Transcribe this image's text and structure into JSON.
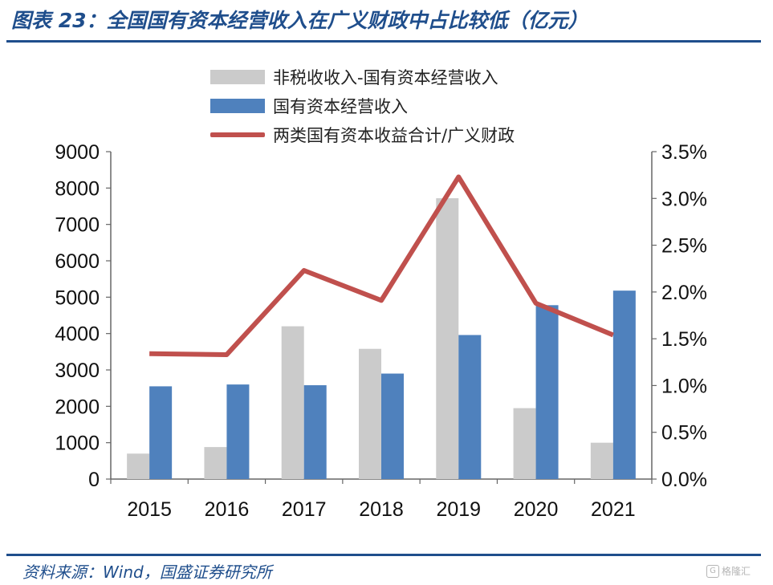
{
  "title": "图表 23：全国国有资本经营收入在广义财政中占比较低（亿元）",
  "source": "资料来源：Wind，国盛证券研究所",
  "watermark": "格隆汇",
  "watermark_icon": "G",
  "colors": {
    "series_nontax": "#cbcbcb",
    "series_soe": "#4f81bd",
    "series_ratio": "#c0504d",
    "accent": "#1f4e8c"
  },
  "chart_data": {
    "type": "bar",
    "categories": [
      "2015",
      "2016",
      "2017",
      "2018",
      "2019",
      "2020",
      "2021"
    ],
    "series": [
      {
        "name": "非税收收入-国有资本经营收入",
        "type": "bar",
        "axis": "left",
        "values": [
          700,
          880,
          4200,
          3580,
          7720,
          1950,
          1000
        ]
      },
      {
        "name": "国有资本经营收入",
        "type": "bar",
        "axis": "left",
        "values": [
          2550,
          2600,
          2580,
          2900,
          3960,
          4780,
          5180
        ]
      },
      {
        "name": "两类国有资本收益合计/广义财政",
        "type": "line",
        "axis": "right",
        "values": [
          1.34,
          1.33,
          2.23,
          1.91,
          3.23,
          1.88,
          1.54
        ]
      }
    ],
    "y_left": {
      "ylim": [
        0,
        9000
      ],
      "ticks": [
        "0",
        "1000",
        "2000",
        "3000",
        "4000",
        "5000",
        "6000",
        "7000",
        "8000",
        "9000"
      ]
    },
    "y_right": {
      "ylim": [
        0,
        3.5
      ],
      "ticks": [
        "0.0%",
        "0.5%",
        "1.0%",
        "1.5%",
        "2.0%",
        "2.5%",
        "3.0%",
        "3.5%"
      ]
    },
    "grid": false,
    "legend_position": "top-center"
  }
}
